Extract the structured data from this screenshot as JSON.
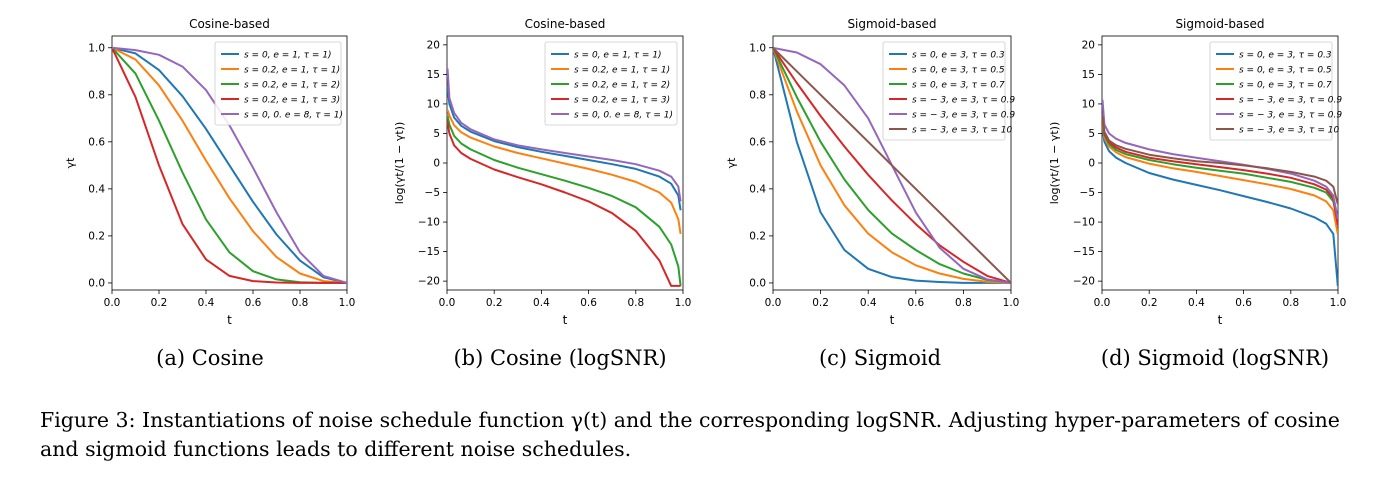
{
  "figure_caption": "Figure 3: Instantiations of noise schedule function γ(t) and the corresponding logSNR. Adjusting hyper-parameters of cosine and sigmoid functions leads to different noise schedules.",
  "chart_data": [
    {
      "type": "line",
      "title": "Cosine-based",
      "subcaption": "(a) Cosine",
      "xlabel": "t",
      "ylabel": "γt",
      "xlim": [
        0,
        1
      ],
      "ylim": [
        -0.03,
        1.05
      ],
      "xticks": [
        "0.0",
        "0.2",
        "0.4",
        "0.6",
        "0.8",
        "1.0"
      ],
      "yticks": [
        "0.0",
        "0.2",
        "0.4",
        "0.6",
        "0.8",
        "1.0"
      ],
      "legend_position": "top-right",
      "x": [
        0,
        0.1,
        0.2,
        0.3,
        0.4,
        0.5,
        0.6,
        0.7,
        0.8,
        0.9,
        1.0
      ],
      "series": [
        {
          "name": "s = 0, e = 1, τ = 1)",
          "color": "#1f77b4",
          "values": [
            1.0,
            0.976,
            0.905,
            0.794,
            0.655,
            0.5,
            0.345,
            0.206,
            0.095,
            0.024,
            0.0
          ]
        },
        {
          "name": "s = 0.2, e = 1, τ = 1)",
          "color": "#ff7f0e",
          "values": [
            1.0,
            0.95,
            0.84,
            0.69,
            0.52,
            0.36,
            0.22,
            0.11,
            0.04,
            0.008,
            0.0
          ]
        },
        {
          "name": "s = 0.2, e = 1, τ = 2)",
          "color": "#2ca02c",
          "values": [
            1.0,
            0.89,
            0.69,
            0.47,
            0.27,
            0.13,
            0.05,
            0.015,
            0.003,
            0.0,
            0.0
          ]
        },
        {
          "name": "s = 0.2, e = 1, τ = 3)",
          "color": "#d62728",
          "values": [
            1.0,
            0.79,
            0.5,
            0.25,
            0.1,
            0.03,
            0.008,
            0.002,
            0.0,
            0.0,
            0.0
          ]
        },
        {
          "name": "s = 0, 0. e = 8, τ = 1)",
          "color": "#9467bd",
          "values": [
            1.0,
            0.99,
            0.97,
            0.92,
            0.82,
            0.67,
            0.49,
            0.3,
            0.13,
            0.03,
            0.0
          ]
        }
      ]
    },
    {
      "type": "line",
      "title": "Cosine-based",
      "subcaption": "(b) Cosine (logSNR)",
      "xlabel": "t",
      "ylabel": "log(γt/(1 − γt))",
      "xlim": [
        0,
        1
      ],
      "ylim": [
        -21.5,
        21.5
      ],
      "xticks": [
        "0.0",
        "0.2",
        "0.4",
        "0.6",
        "0.8",
        "1.0"
      ],
      "yticks": [
        "−20",
        "−15",
        "−10",
        "−5",
        "0",
        "5",
        "10",
        "15",
        "20"
      ],
      "legend_position": "top-right",
      "x": [
        0.002,
        0.01,
        0.03,
        0.06,
        0.1,
        0.2,
        0.3,
        0.4,
        0.5,
        0.6,
        0.7,
        0.8,
        0.9,
        0.95,
        0.98,
        0.99
      ],
      "series": [
        {
          "name": "s = 0, e = 1, τ = 1)",
          "color": "#1f77b4",
          "values": [
            12.8,
            10.0,
            7.7,
            6.3,
            5.3,
            3.7,
            2.7,
            1.9,
            1.2,
            0.5,
            -0.2,
            -1.0,
            -2.3,
            -3.5,
            -5.5,
            -8.0
          ]
        },
        {
          "name": "s = 0.2, e = 1, τ = 1)",
          "color": "#ff7f0e",
          "values": [
            9.0,
            8.0,
            6.4,
            5.2,
            4.3,
            2.8,
            1.7,
            0.8,
            -0.1,
            -1.0,
            -2.0,
            -3.2,
            -5.0,
            -6.7,
            -9.5,
            -12.0
          ]
        },
        {
          "name": "s = 0.2, e = 1, τ = 2)",
          "color": "#2ca02c",
          "values": [
            8.0,
            6.5,
            4.6,
            3.3,
            2.3,
            0.5,
            -0.8,
            -1.9,
            -3.0,
            -4.2,
            -5.6,
            -7.5,
            -10.8,
            -13.8,
            -17.5,
            -20.8
          ]
        },
        {
          "name": "s = 0.2, e = 1, τ = 3)",
          "color": "#d62728",
          "values": [
            7.0,
            5.0,
            3.0,
            1.7,
            0.7,
            -1.1,
            -2.4,
            -3.6,
            -5.0,
            -6.5,
            -8.5,
            -11.5,
            -16.5,
            -20.8,
            -20.8,
            -20.8
          ]
        },
        {
          "name": "s = 0, 0. e = 8, τ = 1)",
          "color": "#9467bd",
          "values": [
            16.0,
            11.0,
            8.5,
            6.8,
            5.7,
            4.0,
            3.0,
            2.3,
            1.7,
            1.1,
            0.5,
            -0.2,
            -1.3,
            -2.3,
            -4.0,
            -6.5
          ]
        }
      ]
    },
    {
      "type": "line",
      "title": "Sigmoid-based",
      "subcaption": "(c) Sigmoid",
      "xlabel": "t",
      "ylabel": "γt",
      "xlim": [
        0,
        1
      ],
      "ylim": [
        -0.03,
        1.05
      ],
      "xticks": [
        "0.0",
        "0.2",
        "0.4",
        "0.6",
        "0.8",
        "1.0"
      ],
      "yticks": [
        "0.0",
        "0.2",
        "0.4",
        "0.6",
        "0.8",
        "1.0"
      ],
      "legend_position": "top-right",
      "x": [
        0,
        0.1,
        0.2,
        0.3,
        0.4,
        0.5,
        0.6,
        0.7,
        0.8,
        0.9,
        1.0
      ],
      "series": [
        {
          "name": "s = 0, e = 3, τ = 0.3",
          "color": "#1f77b4",
          "values": [
            1.0,
            0.6,
            0.3,
            0.14,
            0.06,
            0.025,
            0.01,
            0.004,
            0.0,
            0.0,
            0.0
          ]
        },
        {
          "name": "s = 0, e = 3, τ = 0.5",
          "color": "#ff7f0e",
          "values": [
            1.0,
            0.73,
            0.5,
            0.33,
            0.21,
            0.13,
            0.075,
            0.04,
            0.017,
            0.005,
            0.0
          ]
        },
        {
          "name": "s = 0, e = 3, τ = 0.7",
          "color": "#2ca02c",
          "values": [
            1.0,
            0.79,
            0.6,
            0.44,
            0.31,
            0.21,
            0.14,
            0.08,
            0.04,
            0.013,
            0.0
          ]
        },
        {
          "name": "s = − 3, e = 3, τ = 0.9",
          "color": "#d62728",
          "values": [
            1.0,
            0.85,
            0.71,
            0.58,
            0.46,
            0.35,
            0.25,
            0.16,
            0.09,
            0.03,
            0.0
          ]
        },
        {
          "name": "s = − 3, e = 3, τ = 0.9",
          "color": "#9467bd",
          "values": [
            1.0,
            0.98,
            0.93,
            0.84,
            0.7,
            0.5,
            0.3,
            0.15,
            0.06,
            0.015,
            0.0
          ]
        },
        {
          "name": "s = − 3, e = 3, τ = 10",
          "color": "#8c564b",
          "values": [
            1.0,
            0.9,
            0.8,
            0.7,
            0.6,
            0.5,
            0.4,
            0.3,
            0.2,
            0.1,
            0.0
          ]
        }
      ]
    },
    {
      "type": "line",
      "title": "Sigmoid-based",
      "subcaption": "(d) Sigmoid (logSNR)",
      "xlabel": "t",
      "ylabel": "log(γt/(1 − γt))",
      "xlim": [
        0,
        1
      ],
      "ylim": [
        -21.5,
        21.5
      ],
      "xticks": [
        "0.0",
        "0.2",
        "0.4",
        "0.6",
        "0.8",
        "1.0"
      ],
      "yticks": [
        "−20",
        "−15",
        "−10",
        "−5",
        "0",
        "5",
        "10",
        "15",
        "20"
      ],
      "legend_position": "top-right",
      "x": [
        0.002,
        0.01,
        0.03,
        0.06,
        0.1,
        0.2,
        0.3,
        0.4,
        0.5,
        0.6,
        0.7,
        0.8,
        0.9,
        0.95,
        0.98,
        0.999
      ],
      "series": [
        {
          "name": "s = 0, e = 3, τ = 0.3",
          "color": "#1f77b4",
          "values": [
            6.0,
            3.6,
            2.0,
            0.9,
            0.0,
            -1.7,
            -2.8,
            -3.7,
            -4.6,
            -5.6,
            -6.6,
            -7.7,
            -9.2,
            -10.3,
            -12.0,
            -20.8
          ]
        },
        {
          "name": "s = 0, e = 3, τ = 0.5",
          "color": "#ff7f0e",
          "values": [
            6.7,
            4.3,
            2.8,
            1.8,
            1.0,
            -0.1,
            -0.9,
            -1.5,
            -2.2,
            -2.9,
            -3.6,
            -4.4,
            -5.5,
            -6.5,
            -8.0,
            -12.0
          ]
        },
        {
          "name": "s = 0, e = 3, τ = 0.7",
          "color": "#2ca02c",
          "values": [
            7.2,
            4.7,
            3.2,
            2.2,
            1.5,
            0.5,
            -0.2,
            -0.8,
            -1.3,
            -1.8,
            -2.5,
            -3.2,
            -4.2,
            -5.0,
            -6.5,
            -10.0
          ]
        },
        {
          "name": "s = − 3, e = 3, τ = 0.9",
          "color": "#d62728",
          "values": [
            7.5,
            5.0,
            3.5,
            2.6,
            1.9,
            0.9,
            0.3,
            -0.2,
            -0.7,
            -1.2,
            -1.8,
            -2.5,
            -3.6,
            -4.5,
            -6.0,
            -10.5
          ]
        },
        {
          "name": "s = − 3, e = 3, τ = 0.9",
          "color": "#9467bd",
          "values": [
            10.7,
            6.5,
            5.0,
            4.1,
            3.4,
            2.3,
            1.5,
            0.9,
            0.3,
            -0.3,
            -1.0,
            -1.8,
            -3.0,
            -4.0,
            -5.5,
            -9.5
          ]
        },
        {
          "name": "s = − 3, e = 3, τ = 10",
          "color": "#8c564b",
          "values": [
            8.0,
            5.3,
            3.8,
            3.0,
            2.4,
            1.4,
            0.8,
            0.3,
            0.0,
            -0.4,
            -0.9,
            -1.5,
            -2.3,
            -3.0,
            -4.0,
            -7.0
          ]
        }
      ]
    }
  ]
}
